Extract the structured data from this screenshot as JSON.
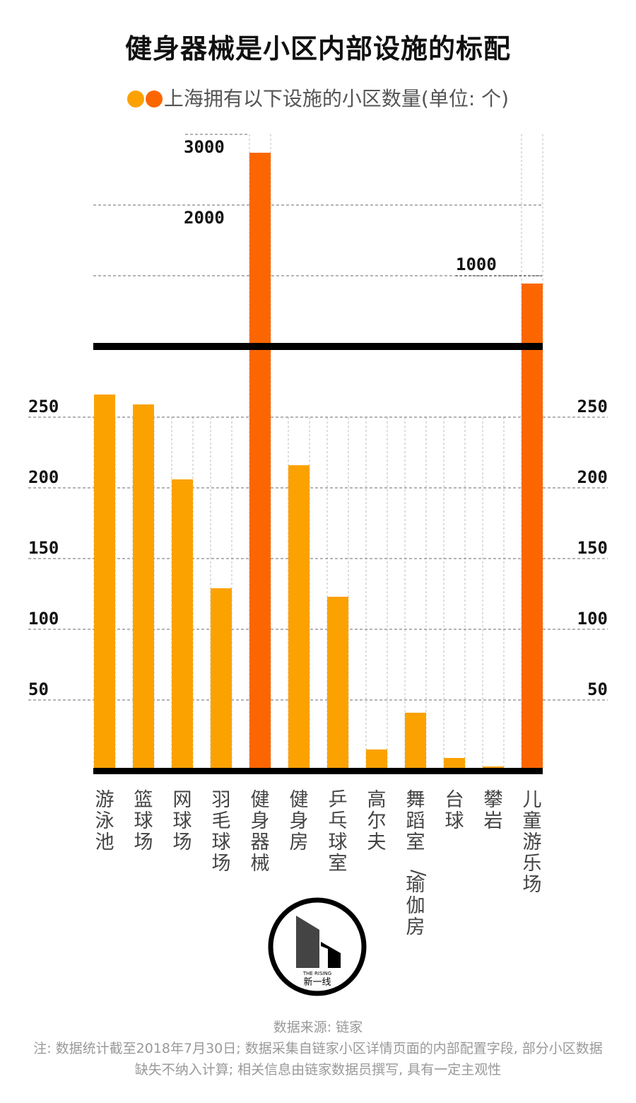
{
  "title": "健身器械是小区内部设施的标配",
  "legend_label": "上海拥有以下设施的小区数量(单位: 个)",
  "source": "数据来源: 链家",
  "footnote": "注: 数据统计截至2018年7月30日; 数据采集自链家小区详情页面的内部配置字段, 部分小区数据缺失不纳入计算; 相关信息由链家数据员撰写, 具有一定主观性",
  "logo": {
    "brand_en": "THE RISING",
    "brand_cn": "新一线"
  },
  "colors": {
    "primary": "#FBA201",
    "highlight": "#FC6601",
    "axis": "#000000",
    "grid": "#888888"
  },
  "chart_data": {
    "type": "bar",
    "title": "健身器械是小区内部设施的标配",
    "legend": [
      "上海拥有以下设施的小区数量(单位: 个)"
    ],
    "categories": [
      "游泳池",
      "篮球场",
      "网球场",
      "羽毛球场",
      "健身器械",
      "健身房",
      "乒乓球室",
      "高尔夫",
      "舞蹈室/瑜伽房",
      "台球",
      "攀岩",
      "儿童游乐场"
    ],
    "values": [
      266,
      259,
      206,
      129,
      2740,
      216,
      123,
      15,
      41,
      9,
      3,
      890
    ],
    "highlight": [
      false,
      false,
      false,
      false,
      true,
      false,
      false,
      false,
      false,
      false,
      false,
      true
    ],
    "axis_break": true,
    "lower_scale": {
      "ylim": [
        0,
        300
      ],
      "ticks": [
        50,
        100,
        150,
        200,
        250
      ]
    },
    "upper_scale": {
      "ylim": [
        0,
        3000
      ],
      "ticks": [
        1000,
        2000,
        3000
      ]
    },
    "grid": true
  }
}
